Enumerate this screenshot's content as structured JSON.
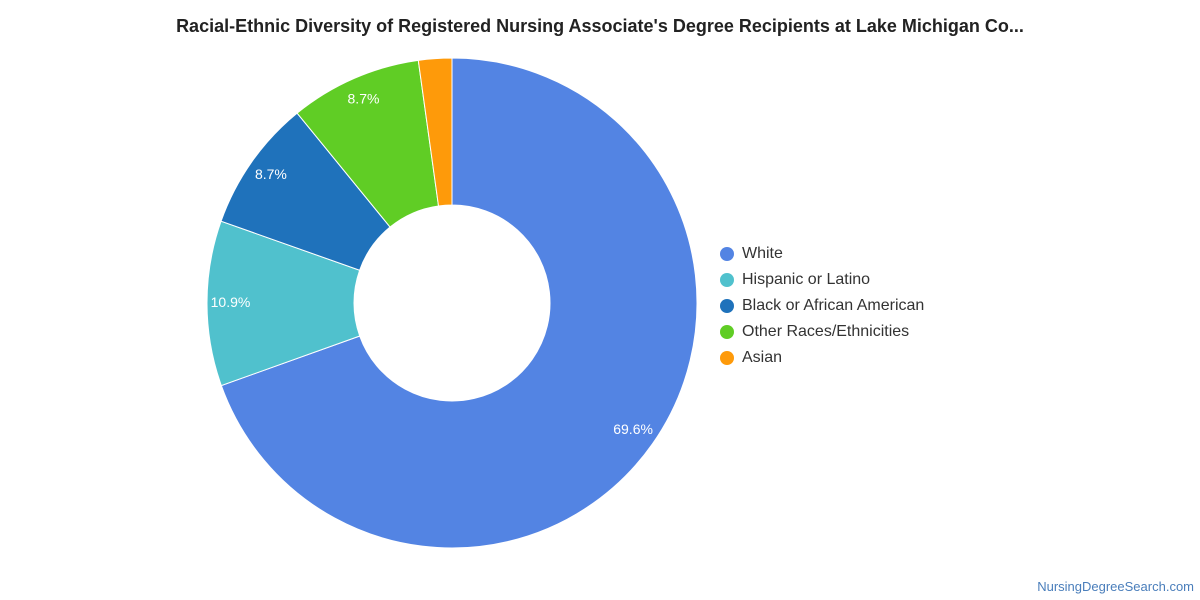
{
  "chart_data": {
    "type": "pie",
    "title": "Racial-Ethnic Diversity of Registered Nursing Associate's Degree Recipients at Lake Michigan Co...",
    "categories": [
      "White",
      "Hispanic or Latino",
      "Black or African American",
      "Other Races/Ethnicities",
      "Asian"
    ],
    "values": [
      69.6,
      10.9,
      8.7,
      8.7,
      2.2
    ],
    "data_labels": [
      "69.6%",
      "10.9%",
      "8.7%",
      "8.7%",
      ""
    ],
    "colors": [
      "#5384e3",
      "#50c1cd",
      "#1f72bb",
      "#60cd25",
      "#fe9a0a"
    ],
    "donut": true,
    "legend_position": "right"
  },
  "footer": {
    "source": "NursingDegreeSearch.com"
  }
}
